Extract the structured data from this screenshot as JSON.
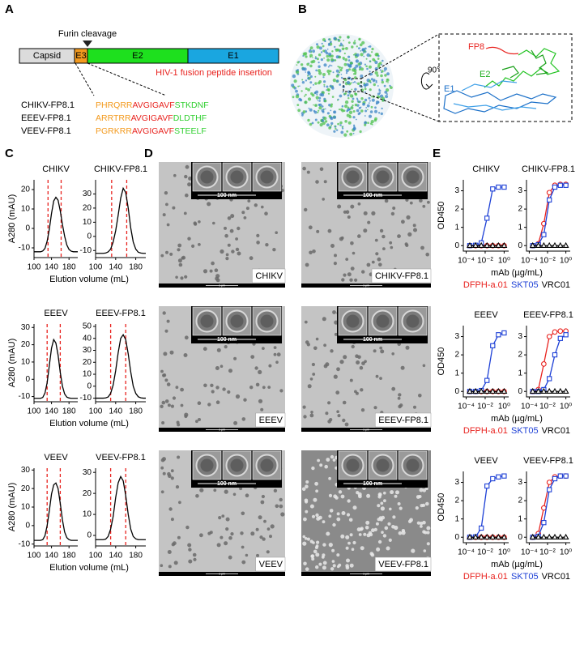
{
  "panel_labels": [
    "A",
    "B",
    "C",
    "D",
    "E"
  ],
  "panel_a": {
    "furin": "Furin cleavage",
    "domains": [
      "Capsid",
      "E3",
      "E2",
      "E1"
    ],
    "insertion": "HIV-1 fusion peptide insertion",
    "constructs": [
      {
        "name": "CHIKV-FP8.1",
        "sequence": [
          "PHRQRR",
          "AVGIGAVF",
          "STKDNF"
        ]
      },
      {
        "name": "EEEV-FP8.1",
        "sequence": [
          "ARRTRR",
          "AVGIGAVF",
          "DLDTHF"
        ]
      },
      {
        "name": "VEEV-FP8.1",
        "sequence": [
          "PGRKRR",
          "AVGIGAVF",
          "STEELF"
        ]
      }
    ]
  },
  "panel_b": {
    "labels": [
      "FP8",
      "E2",
      "E1"
    ],
    "rotation": "90°"
  },
  "panel_d": {
    "micrographs": [
      {
        "label": "CHIKV",
        "inset_scale": "100 nm",
        "scale": "1 μm"
      },
      {
        "label": "CHIKV-FP8.1",
        "inset_scale": "100 nm",
        "scale": "1 μm"
      },
      {
        "label": "EEEV",
        "inset_scale": "100 nm",
        "scale": "1 μm"
      },
      {
        "label": "EEEV-FP8.1",
        "inset_scale": "100 nm",
        "scale": "1 μm"
      },
      {
        "label": "VEEV",
        "inset_scale": "100 nm",
        "scale": "1 μm"
      },
      {
        "label": "VEEV-FP8.1",
        "inset_scale": "100 nm",
        "scale": "1 μm"
      }
    ]
  },
  "chart_data": [
    {
      "type": "line",
      "title": "CHIKV",
      "ylabel": "A280 (mAU)",
      "xlabel": "Elution volume (mL)",
      "x": [
        100,
        105,
        110,
        115,
        120,
        125,
        130,
        135,
        140,
        145,
        150,
        155,
        160,
        165,
        170,
        175,
        180,
        185,
        190,
        195,
        200
      ],
      "series": [
        {
          "color": "#000000",
          "values": [
            -12,
            -12,
            -12,
            -12,
            -11.6,
            -10.3,
            -6.6,
            -0.4,
            7.7,
            14.1,
            16,
            14.5,
            9,
            2,
            -4,
            -8.5,
            -10.8,
            -11.7,
            -12,
            -12,
            -12
          ]
        }
      ],
      "xlim": [
        100,
        200
      ],
      "xticks": [
        100,
        140,
        180
      ],
      "ylim": [
        -15,
        25
      ],
      "yticks": [
        -10,
        0,
        10,
        20
      ],
      "vlines": [
        132,
        162
      ],
      "vline_color": "#e8231f"
    },
    {
      "type": "line",
      "title": "CHIKV-FP8.1",
      "x": [
        100,
        105,
        110,
        115,
        120,
        125,
        130,
        135,
        140,
        145,
        150,
        155,
        160,
        165,
        170,
        175,
        180,
        185,
        190,
        195,
        200
      ],
      "series": [
        {
          "color": "#000000",
          "values": [
            -12,
            -12,
            -12,
            -12,
            -11.8,
            -11,
            -9,
            -4,
            4,
            15,
            27,
            34,
            31,
            20,
            6,
            -4,
            -9,
            -11.2,
            -11.8,
            -12,
            -12
          ]
        }
      ],
      "xlim": [
        100,
        200
      ],
      "xticks": [
        100,
        140,
        180
      ],
      "ylim": [
        -15,
        40
      ],
      "yticks": [
        -10,
        0,
        10,
        20,
        30
      ],
      "vlines": [
        132,
        162
      ],
      "vline_color": "#e8231f"
    },
    {
      "type": "line",
      "title": "EEEV",
      "ylabel": "A280 (mAU)",
      "xlabel": "Elution volume (mL)",
      "x": [
        100,
        105,
        110,
        115,
        120,
        125,
        130,
        135,
        140,
        145,
        150,
        155,
        160,
        165,
        170,
        175,
        180,
        185,
        190,
        195,
        200
      ],
      "series": [
        {
          "color": "#000000",
          "values": [
            -11,
            -11,
            -11,
            -11,
            -10.5,
            -8,
            -2,
            8,
            18,
            23,
            21,
            14,
            4,
            -4,
            -8.5,
            -10.3,
            -10.8,
            -11,
            -11,
            -11,
            -11
          ]
        }
      ],
      "xlim": [
        100,
        200
      ],
      "xticks": [
        100,
        140,
        180
      ],
      "ylim": [
        -13,
        32
      ],
      "yticks": [
        -10,
        0,
        10,
        20,
        30
      ],
      "vlines": [
        130,
        160
      ],
      "vline_color": "#e8231f"
    },
    {
      "type": "line",
      "title": "EEEV-FP8.1",
      "x": [
        100,
        105,
        110,
        115,
        120,
        125,
        130,
        135,
        140,
        145,
        150,
        155,
        160,
        165,
        170,
        175,
        180,
        185,
        190,
        195,
        200
      ],
      "series": [
        {
          "color": "#000000",
          "values": [
            -10,
            -10,
            -10,
            -10,
            -9.8,
            -9,
            -6,
            1,
            13,
            28,
            40,
            43,
            39,
            27,
            12,
            0,
            -6,
            -8.8,
            -9.7,
            -10,
            -10
          ]
        }
      ],
      "xlim": [
        100,
        200
      ],
      "xticks": [
        100,
        140,
        180
      ],
      "ylim": [
        -13,
        52
      ],
      "yticks": [
        -10,
        0,
        10,
        20,
        30,
        40,
        50
      ],
      "vlines": [
        130,
        160
      ],
      "vline_color": "#e8231f"
    },
    {
      "type": "line",
      "title": "VEEV",
      "ylabel": "A280 (mAU)",
      "xlabel": "Elution volume (mL)",
      "x": [
        100,
        105,
        110,
        115,
        120,
        125,
        130,
        135,
        140,
        145,
        150,
        155,
        160,
        165,
        170,
        175,
        180,
        185,
        190,
        195,
        200
      ],
      "series": [
        {
          "color": "#000000",
          "values": [
            -8,
            -8,
            -8,
            -8,
            -7.6,
            -5.5,
            0,
            8,
            17,
            22,
            23,
            20,
            12,
            3,
            -3.5,
            -6.5,
            -7.6,
            -8,
            -8,
            -8,
            -8
          ]
        }
      ],
      "xlim": [
        100,
        200
      ],
      "xticks": [
        100,
        140,
        180
      ],
      "ylim": [
        -11,
        31
      ],
      "yticks": [
        -10,
        0,
        10,
        20,
        30
      ],
      "vlines": [
        130,
        160
      ],
      "vline_color": "#e8231f"
    },
    {
      "type": "line",
      "title": "VEEV-FP8.1",
      "x": [
        100,
        105,
        110,
        115,
        120,
        125,
        130,
        135,
        140,
        145,
        150,
        155,
        160,
        165,
        170,
        175,
        180,
        185,
        190,
        195,
        200
      ],
      "series": [
        {
          "color": "#000000",
          "values": [
            -2,
            -2,
            -2,
            -2,
            -1.8,
            -0.5,
            3,
            9,
            18,
            25,
            28,
            26,
            19,
            10,
            3,
            -0.5,
            -1.6,
            -2,
            -2,
            -2,
            -2
          ]
        }
      ],
      "xlim": [
        100,
        200
      ],
      "xticks": [
        100,
        140,
        180
      ],
      "ylim": [
        -5,
        32
      ],
      "yticks": [
        0,
        10,
        20,
        30
      ],
      "vlines": [
        130,
        160
      ],
      "vline_color": "#e8231f"
    },
    {
      "type": "line",
      "title": "CHIKV",
      "ylabel": "OD450",
      "xlabel": "mAb (µg/mL)",
      "xscale": "log",
      "x": [
        0.00024,
        0.00098,
        0.0039,
        0.0156,
        0.0625,
        0.25,
        1
      ],
      "series": [
        {
          "name": "DFPH-a.01",
          "color": "#e8231f",
          "marker": "circle",
          "values": [
            0,
            0,
            0,
            0,
            0,
            0,
            0
          ]
        },
        {
          "name": "SKT05",
          "color": "#1c3fd6",
          "marker": "square",
          "values": [
            0,
            0.02,
            0.15,
            1.5,
            3.1,
            3.2,
            3.2
          ]
        },
        {
          "name": "VRC01",
          "color": "#000000",
          "marker": "triangle",
          "values": [
            0,
            0,
            0,
            0,
            0,
            0,
            0
          ]
        }
      ],
      "xlim": [
        5e-05,
        3
      ],
      "xticks": [
        {
          "value": 0.0001,
          "label": "10⁻⁴"
        },
        {
          "value": 0.01,
          "label": "10⁻²"
        },
        {
          "value": 1,
          "label": "10⁰"
        }
      ],
      "ylim": [
        -0.3,
        3.6
      ],
      "yticks": [
        0,
        1,
        2,
        3
      ]
    },
    {
      "type": "line",
      "title": "CHIKV-FP8.1",
      "xscale": "log",
      "x": [
        0.00024,
        0.00098,
        0.0039,
        0.0156,
        0.0625,
        0.25,
        1
      ],
      "series": [
        {
          "color": "#e8231f",
          "marker": "circle",
          "values": [
            0,
            0.1,
            1.2,
            2.9,
            3.3,
            3.35,
            3.35
          ]
        },
        {
          "color": "#1c3fd6",
          "marker": "square",
          "values": [
            0,
            0.05,
            0.6,
            2.5,
            3.2,
            3.3,
            3.3
          ]
        },
        {
          "color": "#000000",
          "marker": "triangle",
          "values": [
            0,
            0,
            0,
            0,
            0,
            0,
            0
          ]
        }
      ],
      "xlim": [
        5e-05,
        3
      ],
      "xticks": [
        {
          "value": 0.0001,
          "label": "10⁻⁴"
        },
        {
          "value": 0.01,
          "label": "10⁻²"
        },
        {
          "value": 1,
          "label": "10⁰"
        }
      ],
      "ylim": [
        -0.3,
        3.6
      ],
      "yticks": [
        0,
        1,
        2,
        3
      ]
    },
    {
      "type": "line",
      "title": "EEEV",
      "ylabel": "OD450",
      "xlabel": "mAb (µg/mL)",
      "xscale": "log",
      "x": [
        0.00024,
        0.00098,
        0.0039,
        0.0156,
        0.0625,
        0.25,
        1
      ],
      "series": [
        {
          "name": "DFPH-a.01",
          "color": "#e8231f",
          "marker": "circle",
          "values": [
            0,
            0,
            0,
            0,
            0,
            0,
            0
          ]
        },
        {
          "name": "SKT05",
          "color": "#1c3fd6",
          "marker": "square",
          "values": [
            0,
            0,
            0.05,
            0.6,
            2.5,
            3.1,
            3.2
          ]
        },
        {
          "name": "VRC01",
          "color": "#000000",
          "marker": "triangle",
          "values": [
            0,
            0,
            0,
            0,
            0,
            0,
            0
          ]
        }
      ],
      "xlim": [
        5e-05,
        3
      ],
      "xticks": [
        {
          "value": 0.0001,
          "label": "10⁻⁴"
        },
        {
          "value": 0.01,
          "label": "10⁻²"
        },
        {
          "value": 1,
          "label": "10⁰"
        }
      ],
      "ylim": [
        -0.3,
        3.6
      ],
      "yticks": [
        0,
        1,
        2,
        3
      ]
    },
    {
      "type": "line",
      "title": "EEEV-FP8.1",
      "xscale": "log",
      "x": [
        0.00024,
        0.00098,
        0.0039,
        0.0156,
        0.0625,
        0.25,
        1
      ],
      "series": [
        {
          "color": "#e8231f",
          "marker": "circle",
          "values": [
            0,
            0.1,
            1.5,
            3.0,
            3.25,
            3.3,
            3.3
          ]
        },
        {
          "color": "#1c3fd6",
          "marker": "square",
          "values": [
            0,
            0,
            0.1,
            0.7,
            2.0,
            2.9,
            3.1
          ]
        },
        {
          "color": "#000000",
          "marker": "triangle",
          "values": [
            0,
            0,
            0,
            0,
            0,
            0,
            0
          ]
        }
      ],
      "xlim": [
        5e-05,
        3
      ],
      "xticks": [
        {
          "value": 0.0001,
          "label": "10⁻⁴"
        },
        {
          "value": 0.01,
          "label": "10⁻²"
        },
        {
          "value": 1,
          "label": "10⁰"
        }
      ],
      "ylim": [
        -0.3,
        3.6
      ],
      "yticks": [
        0,
        1,
        2,
        3
      ]
    },
    {
      "type": "line",
      "title": "VEEV",
      "ylabel": "OD450",
      "xlabel": "mAb (µg/mL)",
      "xscale": "log",
      "x": [
        0.00024,
        0.00098,
        0.0039,
        0.0156,
        0.0625,
        0.25,
        1
      ],
      "series": [
        {
          "name": "DFPH-a.01",
          "color": "#e8231f",
          "marker": "circle",
          "values": [
            0,
            0,
            0,
            0,
            0,
            0,
            0
          ]
        },
        {
          "name": "SKT05",
          "color": "#1c3fd6",
          "marker": "square",
          "values": [
            0,
            0.02,
            0.5,
            2.8,
            3.2,
            3.3,
            3.35
          ]
        },
        {
          "name": "VRC01",
          "color": "#000000",
          "marker": "triangle",
          "values": [
            0,
            0,
            0,
            0,
            0,
            0,
            0
          ]
        }
      ],
      "xlim": [
        5e-05,
        3
      ],
      "xticks": [
        {
          "value": 0.0001,
          "label": "10⁻⁴"
        },
        {
          "value": 0.01,
          "label": "10⁻²"
        },
        {
          "value": 1,
          "label": "10⁰"
        }
      ],
      "ylim": [
        -0.3,
        3.6
      ],
      "yticks": [
        0,
        1,
        2,
        3
      ]
    },
    {
      "type": "line",
      "title": "VEEV-FP8.1",
      "xscale": "log",
      "x": [
        0.00024,
        0.00098,
        0.0039,
        0.0156,
        0.0625,
        0.25,
        1
      ],
      "series": [
        {
          "color": "#e8231f",
          "marker": "circle",
          "values": [
            0,
            0.2,
            1.6,
            3.0,
            3.3,
            3.35,
            3.35
          ]
        },
        {
          "color": "#1c3fd6",
          "marker": "square",
          "values": [
            0,
            0.05,
            0.8,
            2.6,
            3.2,
            3.35,
            3.35
          ]
        },
        {
          "color": "#000000",
          "marker": "triangle",
          "values": [
            0,
            0,
            0,
            0,
            0,
            0,
            0
          ]
        }
      ],
      "xlim": [
        5e-05,
        3
      ],
      "xticks": [
        {
          "value": 0.0001,
          "label": "10⁻⁴"
        },
        {
          "value": 0.01,
          "label": "10⁻²"
        },
        {
          "value": 1,
          "label": "10⁰"
        }
      ],
      "ylim": [
        -0.3,
        3.6
      ],
      "yticks": [
        0,
        1,
        2,
        3
      ]
    }
  ]
}
